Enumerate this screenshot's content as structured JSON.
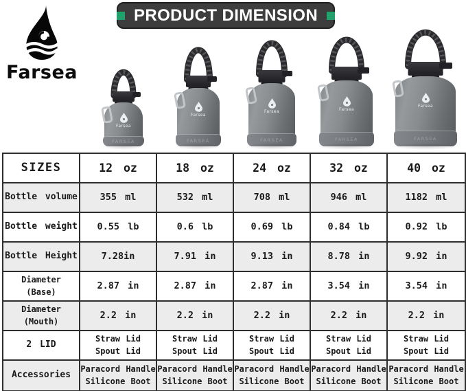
{
  "brand": {
    "name": "Farsea",
    "drop_icon": "water-drop-with-waves"
  },
  "header": {
    "title": "PRODUCT DIMENSION"
  },
  "colors": {
    "accent_green": "#21a16b",
    "title_bar_bg": "#3d3d3d",
    "table_border": "#2e2e2e",
    "table_shade_row": "#ececec",
    "bottle_gray": "#7d8084"
  },
  "bottles": [
    {
      "size": "12 oz",
      "body_label": "Farsea",
      "boot_label": "FARSEA"
    },
    {
      "size": "18 oz",
      "body_label": "Farsea",
      "boot_label": "FARSEA"
    },
    {
      "size": "24 oz",
      "body_label": "Farsea",
      "boot_label": "FARSEA"
    },
    {
      "size": "32 oz",
      "body_label": "Farsea",
      "boot_label": "FARSEA"
    },
    {
      "size": "40 oz",
      "body_label": "Farsea",
      "boot_label": "FARSEA"
    }
  ],
  "table": {
    "header_row": [
      "SIZES",
      "12 oz",
      "18 oz",
      "24 oz",
      "32 oz",
      "40 oz"
    ],
    "rows": [
      {
        "label": [
          "Bottle volume"
        ],
        "values": [
          [
            "355 ml"
          ],
          [
            "532 ml"
          ],
          [
            "708 ml"
          ],
          [
            "946 ml"
          ],
          [
            "1182 ml"
          ]
        ]
      },
      {
        "label": [
          "Bottle weight"
        ],
        "values": [
          [
            "0.55 lb"
          ],
          [
            "0.6 lb"
          ],
          [
            "0.69 lb"
          ],
          [
            "0.84 lb"
          ],
          [
            "0.92 lb"
          ]
        ]
      },
      {
        "label": [
          "Bottle Height"
        ],
        "values": [
          [
            "7.28in"
          ],
          [
            "7.91 in"
          ],
          [
            "9.13 in"
          ],
          [
            "8.78 in"
          ],
          [
            "9.92 in"
          ]
        ]
      },
      {
        "label": [
          "Diameter",
          "(Base)"
        ],
        "values": [
          [
            "2.87 in"
          ],
          [
            "2.87 in"
          ],
          [
            "2.87 in"
          ],
          [
            "3.54 in"
          ],
          [
            "3.54 in"
          ]
        ]
      },
      {
        "label": [
          "Diameter",
          "(Mouth)"
        ],
        "values": [
          [
            "2.2 in"
          ],
          [
            "2.2 in"
          ],
          [
            "2.2 in"
          ],
          [
            "2.2 in"
          ],
          [
            "2.2 in"
          ]
        ]
      },
      {
        "label": [
          "2 LID"
        ],
        "values": [
          [
            "Straw Lid",
            "Spout Lid"
          ],
          [
            "Straw Lid",
            "Spout Lid"
          ],
          [
            "Straw Lid",
            "Spout Lid"
          ],
          [
            "Straw Lid",
            "Spout Lid"
          ],
          [
            "Straw Lid",
            "Spout Lid"
          ]
        ]
      },
      {
        "label": [
          "Accessories"
        ],
        "values": [
          [
            "Paracord Handle",
            "Silicone Boot"
          ],
          [
            "Paracord Handle",
            "Silicone Boot"
          ],
          [
            "Paracord Handle",
            "Silicone Boot"
          ],
          [
            "Paracord Handle",
            "Silicone Boot"
          ],
          [
            "Paracord Handle",
            "Silicone Boot"
          ]
        ]
      }
    ]
  }
}
